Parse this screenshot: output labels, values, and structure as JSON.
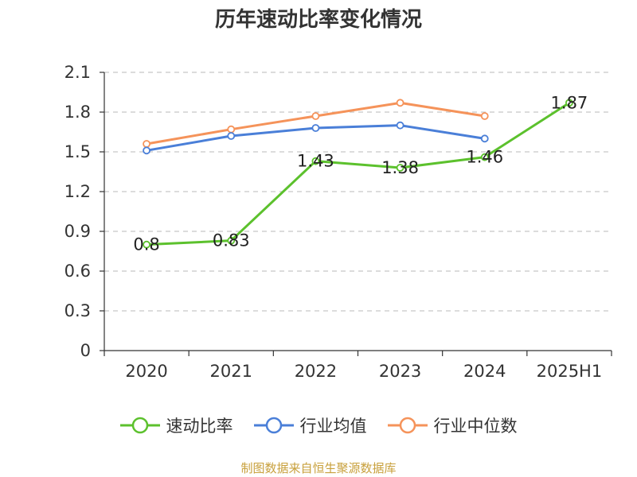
{
  "title": "历年速动比率变化情况",
  "source_note": "制图数据来自恒生聚源数据库",
  "chart_data": {
    "type": "line",
    "title": "历年速动比率变化情况",
    "categories": [
      "2020",
      "2021",
      "2022",
      "2023",
      "2024",
      "2025H1"
    ],
    "ylim": [
      0,
      2.1
    ],
    "yticks": [
      "0",
      "0.3",
      "0.6",
      "0.9",
      "1.2",
      "1.5",
      "1.8",
      "2.1"
    ],
    "grid": true,
    "legend_position": "bottom",
    "series": [
      {
        "name": "速动比率",
        "color": "#5cc12d",
        "values": [
          0.8,
          0.83,
          1.43,
          1.38,
          1.46,
          1.87
        ],
        "labels": [
          "0.8",
          "0.83",
          "1.43",
          "1.38",
          "1.46",
          "1.87"
        ]
      },
      {
        "name": "行业均值",
        "color": "#4a7fd8",
        "values": [
          1.51,
          1.62,
          1.68,
          1.7,
          1.6,
          null
        ]
      },
      {
        "name": "行业中位数",
        "color": "#f5935a",
        "values": [
          1.56,
          1.67,
          1.77,
          1.87,
          1.77,
          null
        ]
      }
    ]
  }
}
